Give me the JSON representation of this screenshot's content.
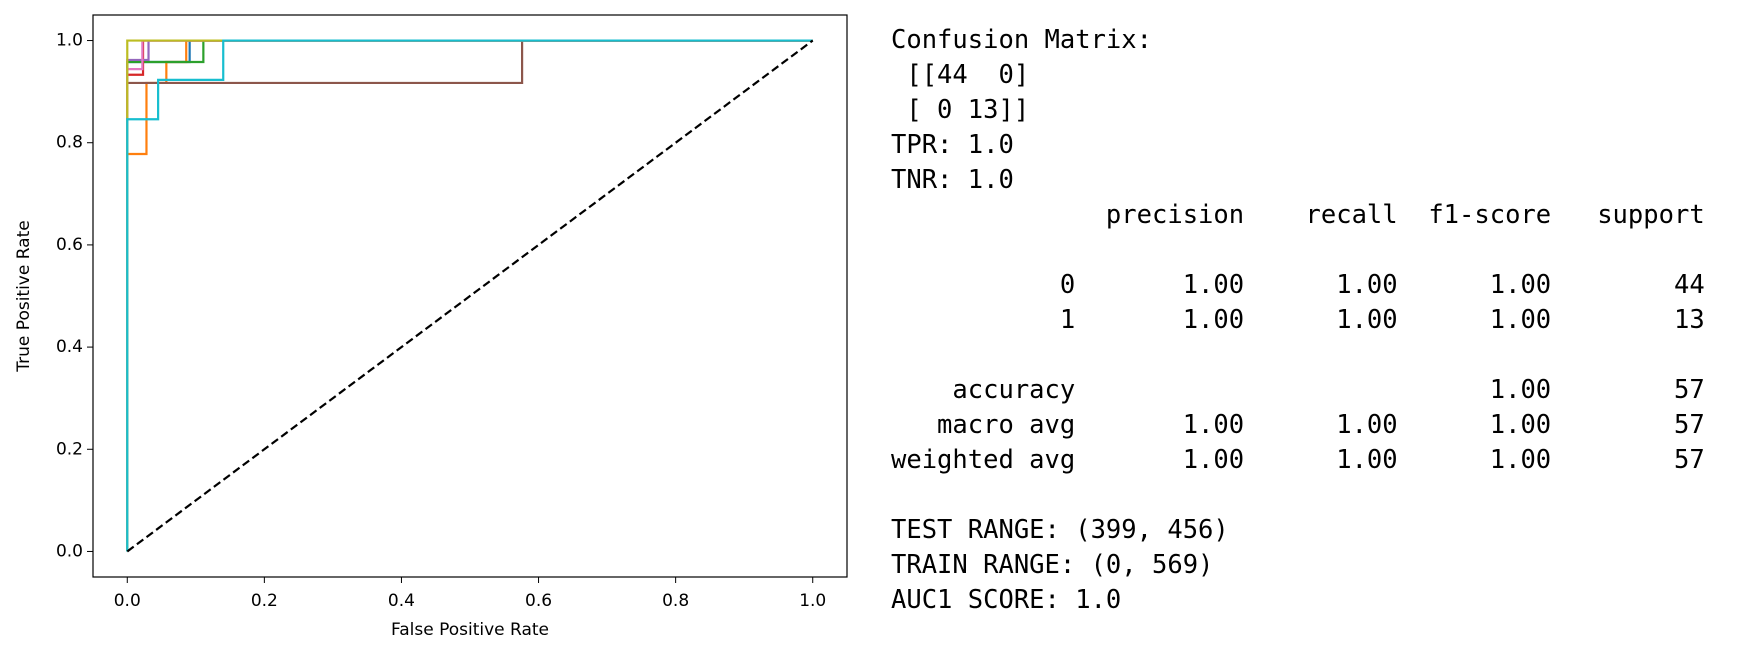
{
  "chart_data": {
    "type": "line",
    "x_label": "False Positive Rate",
    "y_label": "True Positive Rate",
    "xlim": [
      -0.05,
      1.05
    ],
    "ylim": [
      -0.05,
      1.05
    ],
    "xticks": [
      {
        "value": 0,
        "label": "0.0"
      },
      0.2,
      0.4,
      0.6,
      0.8,
      {
        "value": 1,
        "label": "1.0"
      }
    ],
    "yticks": [
      {
        "value": 0,
        "label": "0.0"
      },
      0.2,
      0.4,
      0.6,
      0.8,
      {
        "value": 1,
        "label": "1.0"
      }
    ],
    "series": [
      {
        "color": "#1f77b4",
        "x": [
          0,
          0,
          0.091,
          0.091,
          1
        ],
        "values": [
          0,
          0.958,
          0.958,
          1,
          1
        ]
      },
      {
        "color": "#ff7f0e",
        "x": [
          0,
          0,
          0.028,
          0.028,
          0.057,
          0.057,
          0.086,
          0.086,
          1
        ],
        "values": [
          0,
          0.778,
          0.778,
          0.917,
          0.917,
          0.958,
          0.958,
          1,
          1
        ]
      },
      {
        "color": "#2ca02c",
        "x": [
          0,
          0,
          0.111,
          0.111,
          1
        ],
        "values": [
          0,
          0.958,
          0.958,
          1,
          1
        ]
      },
      {
        "color": "#d62728",
        "x": [
          0,
          0,
          0.023,
          0.023,
          1
        ],
        "values": [
          0,
          0.933,
          0.933,
          1,
          1
        ]
      },
      {
        "color": "#9467bd",
        "x": [
          0,
          0,
          0.031,
          0.031,
          1
        ],
        "values": [
          0,
          0.962,
          0.962,
          1,
          1
        ]
      },
      {
        "color": "#8c564b",
        "x": [
          0,
          0,
          0.576,
          0.576,
          1
        ],
        "values": [
          0,
          0.917,
          0.917,
          1,
          1
        ]
      },
      {
        "color": "#e377c2",
        "x": [
          0,
          0,
          0.022,
          0.022,
          1
        ],
        "values": [
          0,
          0.944,
          0.944,
          1,
          1
        ]
      },
      {
        "color": "#bcbd22",
        "x": [
          0,
          0,
          1
        ],
        "values": [
          0,
          1,
          1
        ]
      },
      {
        "color": "#17becf",
        "x": [
          0,
          0,
          0.045,
          0.045,
          0.14,
          0.14,
          1
        ],
        "values": [
          0,
          0.846,
          0.846,
          0.923,
          0.923,
          1,
          1
        ]
      },
      {
        "color": "#000000",
        "dashed": true,
        "x": [
          0,
          1
        ],
        "values": [
          0,
          1
        ]
      }
    ]
  },
  "output": {
    "matrix_lines": [
      "Confusion Matrix:",
      " [[44  0]",
      " [ 0 13]]",
      "TPR: 1.0",
      "TNR: 1.0"
    ],
    "report": {
      "header": "              precision    recall  f1-score   support",
      "class_rows": [
        "           0       1.00      1.00      1.00        44",
        "           1       1.00      1.00      1.00        13"
      ],
      "avg_rows": [
        "    accuracy                           1.00        57",
        "   macro avg       1.00      1.00      1.00        57",
        "weighted avg       1.00      1.00      1.00        57"
      ]
    },
    "footer_lines": [
      "TEST RANGE: (399, 456)",
      "TRAIN RANGE: (0, 569)",
      "AUC1 SCORE: 1.0"
    ]
  }
}
